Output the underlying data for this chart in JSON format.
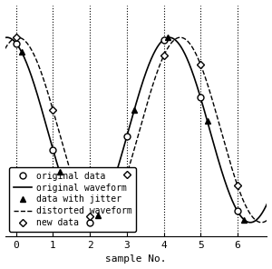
{
  "title": "",
  "xlabel": "sample No.",
  "xlim": [
    -0.3,
    6.8
  ],
  "ylim": [
    -1.15,
    1.35
  ],
  "amplitude": 1.0,
  "omega_factor": 0.68,
  "phase_orig": 0.35,
  "phase_shift": 0.3,
  "jitter": [
    0.15,
    0.18,
    0.22,
    0.2,
    0.12,
    0.18,
    0.18
  ],
  "orig_x": [
    0,
    1,
    2,
    3,
    4,
    5,
    6
  ],
  "legend_fontsize": 7,
  "tick_fontsize": 8,
  "xlabel_fontsize": 8
}
